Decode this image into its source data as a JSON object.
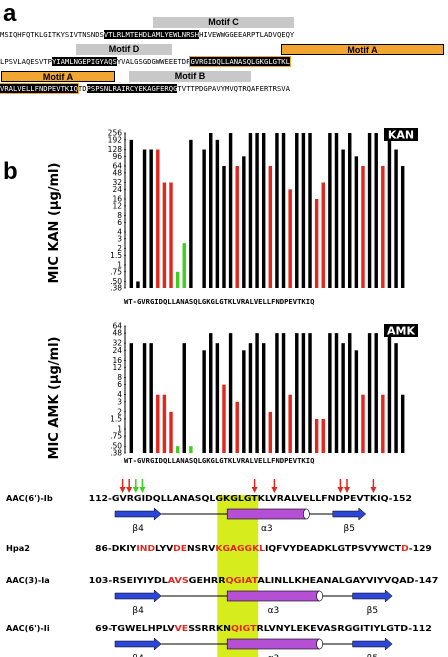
{
  "panel_a": {
    "label": "a",
    "motifs": {
      "c": "Motif C",
      "d": "Motif D",
      "a1": "Motif A",
      "a2": "Motif A",
      "b": "Motif B"
    },
    "line1": {
      "pre": "MSIQHFQTKLGITKYSIVTNSNDS",
      "motif_c": "VTLRLMTEHDLAMLYEWLNRSH",
      "post": "HIVEWWGGEEARPTLADVQEQY"
    },
    "line2": {
      "pre": "LPSVLAQESVTP",
      "motif_d": "YIAMLNGEPIGYAQS",
      "mid": "YVALGSGDGWWEEETDP",
      "motif_a": "GVRGIDQLLANASQLGKGLGTKL"
    },
    "line3": {
      "motif_a": "VRALVELLFNDPEVTKIQ",
      "gap": "TD",
      "motif_b": "PSPSNLRAIRCYEKAGFERQG",
      "post": "TVTTPDGPAVYMVQTRQAFERTRSVA"
    }
  },
  "panel_b": {
    "label": "b",
    "kan_tag": "KAN",
    "amk_tag": "AMK",
    "kan_ylabel": "MIC KAN (μg/ml)",
    "amk_ylabel": "MIC AMK (μg/ml)",
    "seq_label": "WT-GVRGIDQLLANASQLGKGLGTKLVRALVELLFNDPEVTKIQ"
  },
  "chart_data": [
    {
      "type": "bar",
      "ylabel": "MIC KAN (μg/ml)",
      "tag": "KAN",
      "y_scale": "log2",
      "y_ticks": [
        "256",
        "192",
        "128",
        "96",
        "64",
        "48",
        "32",
        "24",
        "16",
        "12",
        "8",
        "6",
        "4",
        "3",
        "2",
        "1.5",
        "1",
        ".75",
        ".50",
        ".38"
      ],
      "ylim": [
        0.38,
        256
      ],
      "categories": [
        "WT",
        "G",
        "V",
        "R",
        "G",
        "I",
        "D",
        "Q",
        "L",
        "L",
        "A",
        "N",
        "A",
        "S",
        "Q",
        "L",
        "G",
        "K",
        "G",
        "L",
        "G",
        "T",
        "K",
        "L",
        "V",
        "R",
        "A",
        "L",
        "V",
        "E",
        "L",
        "L",
        "F",
        "N",
        "D",
        "P",
        "E",
        "V",
        "T",
        "K",
        "I",
        "Q"
      ],
      "values": [
        192,
        0.5,
        128,
        128,
        128,
        32,
        32,
        0.75,
        2.5,
        192,
        0,
        128,
        256,
        192,
        64,
        256,
        64,
        96,
        256,
        256,
        256,
        64,
        256,
        256,
        24,
        256,
        256,
        256,
        16,
        32,
        256,
        256,
        128,
        256,
        96,
        64,
        256,
        256,
        64,
        256,
        128,
        64
      ],
      "colors": [
        "black",
        "black",
        "black",
        "black",
        "red",
        "red",
        "red",
        "green",
        "green",
        "black",
        "black",
        "black",
        "black",
        "black",
        "black",
        "black",
        "red",
        "black",
        "black",
        "black",
        "black",
        "red",
        "black",
        "black",
        "red",
        "black",
        "black",
        "black",
        "red",
        "red",
        "black",
        "black",
        "black",
        "black",
        "black",
        "red",
        "black",
        "black",
        "red",
        "black",
        "black",
        "black"
      ]
    },
    {
      "type": "bar",
      "ylabel": "MIC AMK (μg/ml)",
      "tag": "AMK",
      "y_scale": "log2",
      "y_ticks": [
        "64",
        "48",
        "32",
        "24",
        "16",
        "12",
        "8",
        "6",
        "4",
        "3",
        "2",
        "1.5",
        "1",
        ".75",
        ".50",
        ".38"
      ],
      "ylim": [
        0.38,
        64
      ],
      "categories": [
        "WT",
        "G",
        "V",
        "R",
        "G",
        "I",
        "D",
        "Q",
        "L",
        "L",
        "A",
        "N",
        "A",
        "S",
        "Q",
        "L",
        "G",
        "K",
        "G",
        "L",
        "G",
        "T",
        "K",
        "L",
        "V",
        "R",
        "A",
        "L",
        "V",
        "E",
        "L",
        "L",
        "F",
        "N",
        "D",
        "P",
        "E",
        "V",
        "T",
        "K",
        "I",
        "Q"
      ],
      "values": [
        32,
        0.38,
        32,
        32,
        4,
        4,
        2,
        0.5,
        32,
        0.5,
        0,
        24,
        48,
        32,
        6,
        48,
        3,
        24,
        32,
        48,
        32,
        2,
        48,
        48,
        4,
        48,
        48,
        48,
        1.5,
        1.5,
        48,
        48,
        32,
        48,
        24,
        4,
        48,
        48,
        4,
        48,
        32,
        4
      ],
      "colors": [
        "black",
        "black",
        "black",
        "black",
        "red",
        "red",
        "red",
        "green",
        "black",
        "green",
        "black",
        "black",
        "black",
        "black",
        "red",
        "black",
        "red",
        "black",
        "black",
        "black",
        "black",
        "red",
        "black",
        "black",
        "red",
        "black",
        "black",
        "black",
        "red",
        "red",
        "black",
        "black",
        "black",
        "black",
        "black",
        "red",
        "black",
        "black",
        "red",
        "black",
        "black",
        "black"
      ]
    }
  ],
  "alignment": {
    "arrows_red_idx": [
      1,
      2,
      21,
      24,
      34,
      35,
      39
    ],
    "arrows_green_idx": [
      3,
      4
    ],
    "rows": [
      {
        "name": "AAC(6')-Ib",
        "seq": "112-GVRGIDQLLANASQLGKGLGTKLVRALVELLFNDPEVTKIQ-152",
        "red_idx": [],
        "ss": [
          {
            "kind": "strand",
            "label": "β4",
            "start": 0,
            "end": 7
          },
          {
            "kind": "helix",
            "label": "α3",
            "start": 17,
            "end": 29
          },
          {
            "kind": "strand",
            "label": "β5",
            "start": 33,
            "end": 38
          }
        ]
      },
      {
        "name": "Hpa2",
        "seq": "86-DKIYINDLYVDENSRVKGAGGKLIQFVYDEADKLGTPSVYWCTD-129",
        "red_idx": [
          4,
          5,
          6,
          10,
          11,
          16,
          17,
          18,
          19,
          20,
          21,
          22,
          43
        ],
        "ss": []
      },
      {
        "name": "AAC(3)-Ia",
        "seq": "103-RSEIYIYDLAVSGEHRRQGIATALINLLKHEANALGAYVIYVQAD-147",
        "red_idx": [
          9,
          10,
          11,
          17,
          18,
          19,
          20,
          21
        ],
        "ss": [
          {
            "kind": "strand",
            "label": "β4",
            "start": 0,
            "end": 7
          },
          {
            "kind": "helix",
            "label": "α3",
            "start": 17,
            "end": 31
          },
          {
            "kind": "strand",
            "label": "β5",
            "start": 36,
            "end": 42
          }
        ]
      },
      {
        "name": "AAC(6')-Ii",
        "seq": "69-TGWELHPLVVESSRRKNQIGTRLVNYLEKEVASRGGITIYLGTD-112",
        "red_idx": [
          9,
          10,
          17,
          18,
          19,
          20
        ],
        "ss": [
          {
            "kind": "strand",
            "label": "β4",
            "start": 0,
            "end": 7
          },
          {
            "kind": "helix",
            "label": "α3",
            "start": 17,
            "end": 31
          },
          {
            "kind": "strand",
            "label": "β5",
            "start": 36,
            "end": 42
          }
        ]
      }
    ]
  },
  "colors": {
    "red": "#e0281e",
    "green": "#3fcf1f",
    "black": "#000000",
    "orange": "#f2a531",
    "gray": "#c8c8c8",
    "highlight": "#d7ec1c",
    "helix": "#b44fd6",
    "strand": "#2c46d8"
  }
}
